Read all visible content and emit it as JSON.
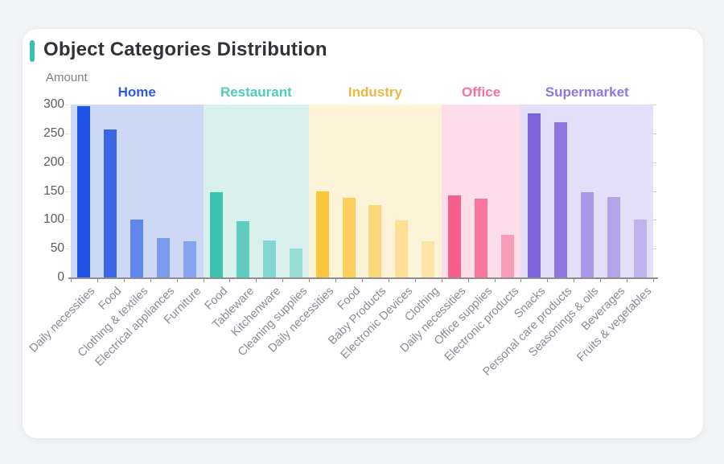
{
  "page": {
    "background_color": "#f3f4f6",
    "card_background_color": "#ffffff"
  },
  "header": {
    "title": "Object Categories Distribution",
    "accent_color": "#35c2b1",
    "title_color": "#303338"
  },
  "chart_data": {
    "type": "bar",
    "title": "Object Categories Distribution",
    "xlabel": "",
    "ylabel": "Amount",
    "ylim": [
      0,
      300
    ],
    "yticks": [
      0,
      50,
      100,
      150,
      200,
      250,
      300
    ],
    "grid": false,
    "legend_position": "none",
    "axis_color": "#8f8f8f",
    "ytick_label_color": "#5c5c5c",
    "xtick_label_color": "#8a8a97",
    "groups": [
      {
        "name": "Home",
        "name_color": "#2e5ae8",
        "bar_color": "#1f53e5",
        "band_color": "#cdd8f5",
        "bars": [
          {
            "label": "Daily necessities",
            "value": 297,
            "opacity": 1
          },
          {
            "label": "Food",
            "value": 257,
            "opacity": 0.85
          },
          {
            "label": "Clothing & textiles",
            "value": 101,
            "opacity": 0.62
          },
          {
            "label": "Electrical appliances",
            "value": 68,
            "opacity": 0.46
          },
          {
            "label": "Furniture",
            "value": 63,
            "opacity": 0.4
          }
        ]
      },
      {
        "name": "Restaurant",
        "name_color": "#4fccbd",
        "bar_color": "#3ec3b3",
        "band_color": "#d9f0ec",
        "bars": [
          {
            "label": "Food",
            "value": 148,
            "opacity": 1
          },
          {
            "label": "Tableware",
            "value": 97,
            "opacity": 0.78
          },
          {
            "label": "Kitchenware",
            "value": 64,
            "opacity": 0.55
          },
          {
            "label": "Cleaning supplies",
            "value": 50,
            "opacity": 0.42
          }
        ]
      },
      {
        "name": "Industry",
        "name_color": "#efb545",
        "bar_color": "#fcc53a",
        "band_color": "#fdf3d9",
        "bars": [
          {
            "label": "Daily necessities",
            "value": 150,
            "opacity": 1
          },
          {
            "label": "Food",
            "value": 138,
            "opacity": 0.78
          },
          {
            "label": "Baby Products",
            "value": 126,
            "opacity": 0.6
          },
          {
            "label": "Electronic Devices",
            "value": 99,
            "opacity": 0.42
          },
          {
            "label": "Clothing",
            "value": 63,
            "opacity": 0.3
          }
        ]
      },
      {
        "name": "Office",
        "name_color": "#f6719b",
        "bar_color": "#f85e8b",
        "band_color": "#fcdde9",
        "bars": [
          {
            "label": "Daily necessities",
            "value": 142,
            "opacity": 1
          },
          {
            "label": "Office supplies",
            "value": 137,
            "opacity": 0.8
          },
          {
            "label": "Electronic products",
            "value": 74,
            "opacity": 0.5
          }
        ]
      },
      {
        "name": "Supermarket",
        "name_color": "#8f76e4",
        "bar_color": "#7e64da",
        "band_color": "#e4dff8",
        "bars": [
          {
            "label": "Snacks",
            "value": 284,
            "opacity": 1
          },
          {
            "label": "Personal care products",
            "value": 270,
            "opacity": 0.85
          },
          {
            "label": "Seasonings & oils",
            "value": 148,
            "opacity": 0.58
          },
          {
            "label": "Beverages",
            "value": 140,
            "opacity": 0.48
          },
          {
            "label": "Fruits & vegetables",
            "value": 101,
            "opacity": 0.36
          }
        ]
      }
    ]
  }
}
